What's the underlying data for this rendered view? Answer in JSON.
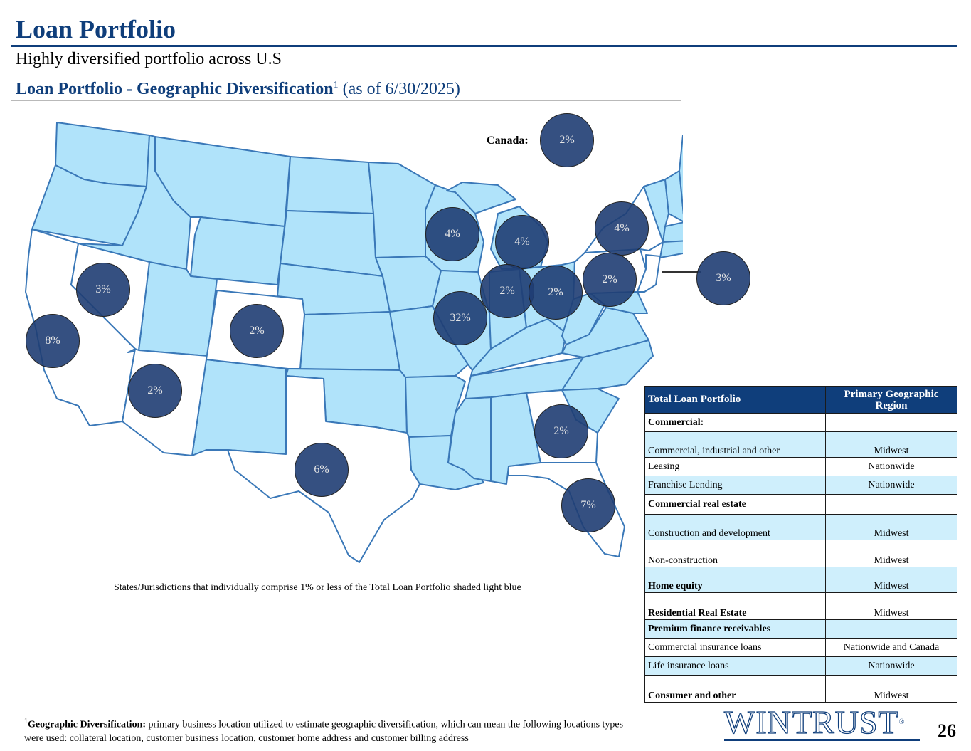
{
  "header": {
    "title": "Loan Portfolio",
    "subtitle": "Highly diversified portfolio across U.S",
    "section_title": "Loan Portfolio - Geographic Diversification",
    "section_footnote_mark": "1",
    "section_date": " (as of 6/30/2025)"
  },
  "map": {
    "canada_label": "Canada:",
    "note": "States/Jurisdictions that individually comprise 1% or less of the Total Loan Portfolio shaded light blue",
    "colors": {
      "highlight_state": "#ffffff",
      "other_state": "#b0e3fa",
      "border": "#3a78b8",
      "bubble": "#1f3d73"
    },
    "bubbles": {
      "canada": "2%",
      "california": "8%",
      "nevada": "3%",
      "arizona": "2%",
      "colorado": "2%",
      "texas": "6%",
      "wisconsin": "4%",
      "michigan": "4%",
      "illinois": "32%",
      "indiana": "2%",
      "ohio": "2%",
      "pennsylvania": "2%",
      "new_york": "4%",
      "new_jersey": "3%",
      "georgia": "2%",
      "florida": "7%"
    }
  },
  "table": {
    "header": {
      "col1": "Total Loan Portfolio",
      "col2": "Primary Geographic Region"
    },
    "rows": [
      {
        "label": "Commercial:",
        "region": ""
      },
      {
        "label": "Commercial, industrial and other",
        "region": "Midwest"
      },
      {
        "label": "Leasing",
        "region": "Nationwide"
      },
      {
        "label": "Franchise Lending",
        "region": "Nationwide"
      },
      {
        "label": "Commercial real estate",
        "region": ""
      },
      {
        "label": "Construction and development",
        "region": "Midwest"
      },
      {
        "label": "Non-construction",
        "region": "Midwest"
      },
      {
        "label": "Home equity",
        "region": "Midwest"
      },
      {
        "label": "Residential Real Estate",
        "region": "Midwest"
      },
      {
        "label": "Premium finance receivables",
        "region": ""
      },
      {
        "label": "Commercial insurance loans",
        "region": "Nationwide and Canada"
      },
      {
        "label": "Life insurance loans",
        "region": "Nationwide"
      },
      {
        "label": "Consumer and other",
        "region": "Midwest"
      }
    ]
  },
  "footnote": {
    "mark": "1",
    "bold": "Geographic Diversification:",
    "text": " primary business location utilized to estimate geographic diversification, which can mean the following locations types were used: collateral location, customer business location, customer home address and customer billing address"
  },
  "logo": {
    "text": "WINTRUST",
    "mark": "®"
  },
  "page_number": "26"
}
